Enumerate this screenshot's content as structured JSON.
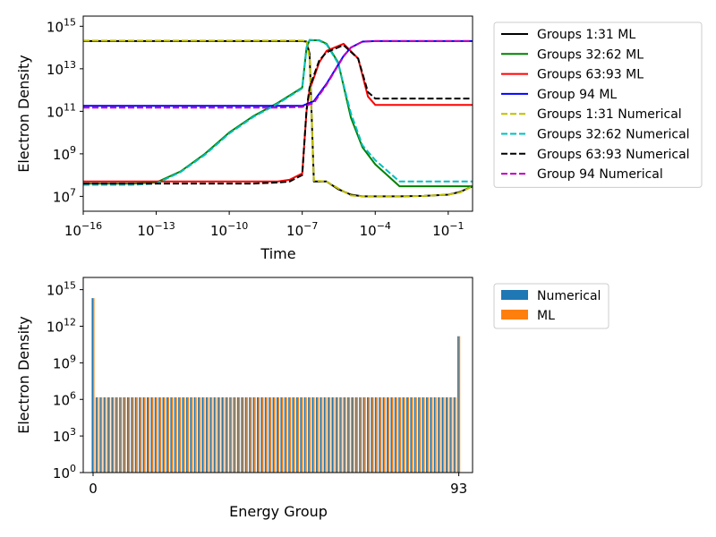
{
  "chart_data": [
    {
      "type": "line",
      "title": "",
      "xlabel": "Time",
      "ylabel": "Electron Density",
      "xscale": "log",
      "yscale": "log",
      "xlim": [
        1e-16,
        1
      ],
      "ylim": [
        2000000.0,
        3000000000000000.0
      ],
      "xticks": [
        {
          "value": 1e-16,
          "base": "10",
          "exp": "−16"
        },
        {
          "value": 1e-13,
          "base": "10",
          "exp": "−13"
        },
        {
          "value": 1e-10,
          "base": "10",
          "exp": "−10"
        },
        {
          "value": 1e-07,
          "base": "10",
          "exp": "−7"
        },
        {
          "value": 0.0001,
          "base": "10",
          "exp": "−4"
        },
        {
          "value": 0.1,
          "base": "10",
          "exp": "−1"
        }
      ],
      "yticks": [
        {
          "value": 10000000.0,
          "base": "10",
          "exp": "7"
        },
        {
          "value": 1000000000.0,
          "base": "10",
          "exp": "9"
        },
        {
          "value": 100000000000.0,
          "base": "10",
          "exp": "11"
        },
        {
          "value": 10000000000000.0,
          "base": "10",
          "exp": "13"
        },
        {
          "value": 1000000000000000.0,
          "base": "10",
          "exp": "15"
        }
      ],
      "legend_position": "outside-right",
      "series": [
        {
          "name": "Groups 1:31 ML",
          "color": "#000000",
          "dash": "solid",
          "width": 2,
          "x": [
            1e-16,
            1e-08,
            1e-07,
            1.5e-07,
            2e-07,
            3e-07,
            1e-06,
            3e-06,
            1e-05,
            3e-05,
            0.0001,
            0.001,
            0.01,
            0.1,
            0.3,
            1
          ],
          "y": [
            200000000000000.0,
            200000000000000.0,
            200000000000000.0,
            190000000000000.0,
            50000000000000.0,
            50000000.0,
            50000000.0,
            22000000.0,
            12000000.0,
            10000000.0,
            10000000.0,
            10000000.0,
            10500000.0,
            12000000.0,
            16000000.0,
            30000000.0
          ]
        },
        {
          "name": "Groups 32:62 ML",
          "color": "#008000",
          "dash": "solid",
          "width": 2,
          "x": [
            1e-16,
            1e-14,
            1e-13,
            1e-12,
            1e-11,
            1e-10,
            1e-09,
            1e-08,
            1e-07,
            1.5e-07,
            2e-07,
            5e-07,
            1e-06,
            3e-06,
            1e-05,
            3e-05,
            0.0001,
            0.001,
            0.01,
            0.1,
            1
          ],
          "y": [
            40000000.0,
            40000000.0,
            45000000.0,
            150000000.0,
            1000000000.0,
            10000000000.0,
            60000000000.0,
            250000000000.0,
            1300000000000.0,
            100000000000000.0,
            220000000000000.0,
            220000000000000.0,
            150000000000000.0,
            20000000000000.0,
            50000000000.0,
            2000000000.0,
            320000000.0,
            30000000.0,
            30000000.0,
            30000000.0,
            30000000.0
          ]
        },
        {
          "name": "Groups 63:93 ML",
          "color": "#ff0000",
          "dash": "solid",
          "width": 2,
          "x": [
            1e-16,
            1e-12,
            1e-09,
            1e-08,
            3e-08,
            1e-07,
            1.5e-07,
            2e-07,
            5e-07,
            1e-06,
            5e-06,
            2e-05,
            5e-05,
            0.0001,
            0.001,
            0.01,
            1
          ],
          "y": [
            50000000.0,
            50000000.0,
            50000000.0,
            50000000.0,
            60000000.0,
            120000000.0,
            100000000000.0,
            1000000000000.0,
            20000000000000.0,
            70000000000000.0,
            150000000000000.0,
            30000000000000.0,
            500000000000.0,
            200000000000.0,
            200000000000.0,
            200000000000.0,
            200000000000.0
          ]
        },
        {
          "name": "Group 94 ML",
          "color": "#0000ff",
          "dash": "solid",
          "width": 2,
          "x": [
            1e-16,
            1e-08,
            1e-07,
            3e-07,
            1e-06,
            5e-06,
            1e-05,
            3e-05,
            0.0001,
            0.001,
            1
          ],
          "y": [
            180000000000.0,
            180000000000.0,
            180000000000.0,
            300000000000.0,
            2000000000000.0,
            40000000000000.0,
            100000000000000.0,
            190000000000000.0,
            200000000000000.0,
            200000000000000.0,
            200000000000000.0
          ]
        },
        {
          "name": "Groups 1:31 Numerical",
          "color": "#bfbf00",
          "dash": "dashed",
          "width": 2,
          "x": [
            1e-16,
            1e-08,
            1e-07,
            1.5e-07,
            2e-07,
            3e-07,
            1e-06,
            3e-06,
            1e-05,
            3e-05,
            0.0001,
            0.001,
            0.01,
            0.1,
            0.3,
            1
          ],
          "y": [
            210000000000000.0,
            210000000000000.0,
            210000000000000.0,
            200000000000000.0,
            30000000000000.0,
            55000000.0,
            50000000.0,
            24000000.0,
            11000000.0,
            10000000.0,
            10000000.0,
            10000000.0,
            10500000.0,
            12000000.0,
            15000000.0,
            30000000.0
          ]
        },
        {
          "name": "Groups 32:62 Numerical",
          "color": "#00bfbf",
          "dash": "dashed",
          "width": 2,
          "x": [
            1e-16,
            1e-14,
            1e-13,
            1e-12,
            1e-11,
            1e-10,
            1e-09,
            1e-08,
            1e-07,
            1.5e-07,
            2e-07,
            5e-07,
            1e-06,
            3e-06,
            1e-05,
            3e-05,
            0.0001,
            0.001,
            0.01,
            0.1,
            1
          ],
          "y": [
            35000000.0,
            35000000.0,
            40000000.0,
            140000000.0,
            900000000.0,
            9000000000.0,
            55000000000.0,
            230000000000.0,
            1200000000000.0,
            100000000000000.0,
            230000000000000.0,
            210000000000000.0,
            140000000000000.0,
            18000000000000.0,
            80000000000.0,
            2500000000.0,
            500000000.0,
            50000000.0,
            50000000.0,
            50000000.0,
            50000000.0
          ]
        },
        {
          "name": "Groups 63:93 Numerical",
          "color": "#000000",
          "dash": "dashed",
          "width": 2,
          "x": [
            1e-16,
            1e-12,
            1e-09,
            1e-08,
            3e-08,
            1e-07,
            1.5e-07,
            2e-07,
            5e-07,
            1e-06,
            5e-06,
            2e-05,
            5e-05,
            0.0001,
            0.001,
            0.01,
            1
          ],
          "y": [
            40000000.0,
            40000000.0,
            40000000.0,
            45000000.0,
            50000000.0,
            100000000.0,
            120000000000.0,
            1300000000000.0,
            25000000000000.0,
            60000000000000.0,
            130000000000000.0,
            30000000000000.0,
            800000000000.0,
            400000000000.0,
            400000000000.0,
            400000000000.0,
            400000000000.0
          ]
        },
        {
          "name": "Group 94 Numerical",
          "color": "#bf00bf",
          "dash": "dashed",
          "width": 2,
          "x": [
            1e-16,
            1e-08,
            1e-07,
            3e-07,
            1e-06,
            5e-06,
            1e-05,
            3e-05,
            0.0001,
            0.001,
            1
          ],
          "y": [
            150000000000.0,
            150000000000.0,
            160000000000.0,
            250000000000.0,
            1800000000000.0,
            38000000000000.0,
            100000000000000.0,
            190000000000000.0,
            200000000000000.0,
            200000000000000.0,
            200000000000000.0
          ]
        }
      ]
    },
    {
      "type": "bar",
      "title": "",
      "xlabel": "Energy Group",
      "ylabel": "Electron Density",
      "yscale": "log",
      "xlim": [
        -2.5,
        96.5
      ],
      "ylim": [
        1,
        1e+16
      ],
      "xticks": [
        {
          "value": 0,
          "label": "0"
        },
        {
          "value": 93,
          "label": "93"
        }
      ],
      "yticks": [
        {
          "value": 1,
          "base": "10",
          "exp": "0"
        },
        {
          "value": 1000.0,
          "base": "10",
          "exp": "3"
        },
        {
          "value": 1000000.0,
          "base": "10",
          "exp": "6"
        },
        {
          "value": 1000000000.0,
          "base": "10",
          "exp": "9"
        },
        {
          "value": 1000000000000.0,
          "base": "10",
          "exp": "12"
        },
        {
          "value": 1000000000000000.0,
          "base": "10",
          "exp": "15"
        }
      ],
      "legend_position": "outside-right",
      "groups": {
        "start": 0,
        "end": 93,
        "first_value": 200000000000000.0,
        "middle_value": 1500000.0,
        "last_value": 150000000000.0
      },
      "series": [
        {
          "name": "Numerical",
          "color": "#1f77b4"
        },
        {
          "name": "ML",
          "color": "#ff7f0e"
        }
      ]
    }
  ]
}
